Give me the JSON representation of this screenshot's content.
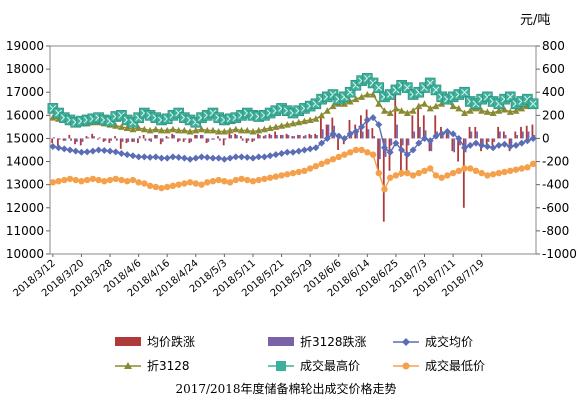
{
  "chart_data": {
    "type": "line",
    "title": "2017/2018年度储备棉轮出成交价格走势",
    "unit_right": "元/吨",
    "y_left": {
      "min": 10000,
      "max": 19000,
      "step": 1000,
      "ticks": [
        "10000",
        "11000",
        "12000",
        "13000",
        "14000",
        "15000",
        "16000",
        "17000",
        "18000",
        "19000"
      ]
    },
    "y_right": {
      "min": -1000,
      "max": 800,
      "step": 200,
      "ticks": [
        "-1000",
        "-800",
        "-600",
        "-400",
        "-200",
        "0",
        "200",
        "400",
        "600",
        "800"
      ]
    },
    "x": {
      "count": 85,
      "tick_labels": [
        "2018/3/12",
        "2018/3/20",
        "2018/3/28",
        "2018/4/6",
        "2018/4/16",
        "2018/4/24",
        "2018/5/3",
        "2018/5/11",
        "2018/5/21",
        "2018/5/29",
        "2018/6/6",
        "2018/6/14",
        "2018/6/25",
        "2018/7/3",
        "2018/7/11",
        "2018/7/19"
      ],
      "tick_every": 5
    },
    "legend": [
      {
        "key": "avg_change",
        "label": "均价跌涨",
        "marker": "bar"
      },
      {
        "key": "conv_change",
        "label": "折3128跌涨",
        "marker": "bar"
      },
      {
        "key": "avg",
        "label": "成交均价",
        "marker": "diamond-line"
      },
      {
        "key": "conv3128",
        "label": "折3128",
        "marker": "triangle-line"
      },
      {
        "key": "high",
        "label": "成交最高价",
        "marker": "square-line"
      },
      {
        "key": "low",
        "label": "成交最低价",
        "marker": "circle-line"
      }
    ],
    "colors": {
      "avg_change": "#b03a3a",
      "conv_change": "#7a62a8",
      "avg": "#5b6db5",
      "conv3128": "#8a8a32",
      "high": "#3cb09a",
      "low": "#f5a04a"
    },
    "series": [
      {
        "name": "成交均价",
        "axis": "left",
        "values": [
          14650,
          14600,
          14550,
          14500,
          14450,
          14400,
          14420,
          14450,
          14500,
          14480,
          14450,
          14420,
          14350,
          14300,
          14250,
          14200,
          14200,
          14180,
          14200,
          14150,
          14150,
          14200,
          14180,
          14150,
          14100,
          14150,
          14200,
          14180,
          14150,
          14150,
          14100,
          14150,
          14200,
          14200,
          14180,
          14150,
          14200,
          14200,
          14250,
          14300,
          14350,
          14400,
          14400,
          14450,
          14500,
          14550,
          14600,
          14800,
          15000,
          15200,
          15100,
          15000,
          15200,
          15300,
          15500,
          15800,
          15900,
          15600,
          14600,
          14400,
          14800,
          14500,
          14300,
          14500,
          14800,
          15000,
          14900,
          15100,
          15200,
          15300,
          15200,
          15000,
          14600,
          14700,
          14800,
          14700,
          14650,
          14600,
          14700,
          14750,
          14650,
          14700,
          14800,
          14900,
          15000
        ]
      },
      {
        "name": "折3128",
        "axis": "left",
        "values": [
          15900,
          15850,
          15800,
          15750,
          15700,
          15650,
          15650,
          15700,
          15700,
          15650,
          15600,
          15550,
          15500,
          15450,
          15400,
          15450,
          15400,
          15350,
          15400,
          15350,
          15350,
          15400,
          15350,
          15350,
          15300,
          15350,
          15400,
          15350,
          15350,
          15300,
          15300,
          15350,
          15400,
          15350,
          15350,
          15300,
          15350,
          15400,
          15450,
          15500,
          15550,
          15600,
          15650,
          15700,
          15750,
          15800,
          15850,
          16000,
          16200,
          16400,
          16500,
          16500,
          16600,
          16700,
          16800,
          16900,
          16900,
          16500,
          16200,
          16100,
          16300,
          16200,
          16100,
          16200,
          16400,
          16500,
          16300,
          16400,
          16500,
          16600,
          16400,
          16300,
          16100,
          16200,
          16300,
          16200,
          16150,
          16100,
          16200,
          16250,
          16150,
          16200,
          16300,
          16400,
          16450
        ]
      },
      {
        "name": "成交最高价",
        "axis": "left",
        "values": [
          16300,
          16100,
          15900,
          15800,
          15700,
          15750,
          15800,
          15850,
          15900,
          15800,
          15750,
          15950,
          16000,
          15800,
          15700,
          15900,
          16100,
          16000,
          15900,
          15800,
          15850,
          16000,
          16100,
          15900,
          15800,
          15700,
          15900,
          16000,
          16100,
          15900,
          15800,
          15850,
          15900,
          16000,
          16100,
          16000,
          15950,
          16000,
          16100,
          16200,
          16300,
          16200,
          16100,
          16200,
          16300,
          16400,
          16500,
          16700,
          16800,
          16900,
          16700,
          16800,
          17000,
          17300,
          17500,
          17600,
          17400,
          17200,
          16800,
          16900,
          17100,
          17300,
          17200,
          16900,
          17000,
          17200,
          17400,
          17100,
          16800,
          16700,
          16800,
          16900,
          17000,
          16600,
          16500,
          16700,
          16800,
          16600,
          16500,
          16700,
          16800,
          16500,
          16600,
          16700,
          16500
        ]
      },
      {
        "name": "成交最低价",
        "axis": "left",
        "values": [
          13100,
          13150,
          13200,
          13250,
          13200,
          13150,
          13200,
          13250,
          13200,
          13150,
          13200,
          13250,
          13200,
          13150,
          13200,
          13100,
          13050,
          12950,
          12900,
          12850,
          12900,
          12950,
          13000,
          13050,
          13100,
          13050,
          13000,
          13100,
          13150,
          13200,
          13150,
          13100,
          13200,
          13250,
          13200,
          13150,
          13200,
          13250,
          13300,
          13350,
          13400,
          13450,
          13500,
          13550,
          13600,
          13700,
          13800,
          13900,
          14000,
          14100,
          14200,
          14300,
          14400,
          14500,
          14500,
          14400,
          14300,
          13500,
          12800,
          13300,
          13400,
          13500,
          13500,
          13400,
          13500,
          13600,
          13700,
          13400,
          13300,
          13400,
          13500,
          13600,
          13700,
          13700,
          13600,
          13500,
          13400,
          13450,
          13500,
          13550,
          13600,
          13650,
          13700,
          13750,
          13900
        ]
      },
      {
        "name": "均价跌涨",
        "axis": "right",
        "values": [
          -40,
          -60,
          -20,
          30,
          -50,
          -60,
          20,
          40,
          -10,
          -30,
          -40,
          20,
          -90,
          -40,
          -30,
          -40,
          30,
          -20,
          30,
          -50,
          20,
          40,
          -30,
          -30,
          -40,
          30,
          30,
          -40,
          -10,
          20,
          -60,
          50,
          40,
          20,
          -40,
          -30,
          40,
          20,
          40,
          60,
          30,
          40,
          20,
          30,
          20,
          40,
          40,
          200,
          120,
          180,
          -100,
          -50,
          160,
          120,
          200,
          250,
          90,
          -300,
          -720,
          -280,
          420,
          -330,
          -280,
          200,
          290,
          200,
          -110,
          200,
          100,
          80,
          -110,
          -200,
          -600,
          100,
          100,
          -110,
          -60,
          -60,
          100,
          60,
          -110,
          60,
          100,
          110,
          120
        ]
      },
      {
        "name": "折3128跌涨",
        "axis": "right",
        "values": [
          10,
          -10,
          -20,
          -20,
          -30,
          -30,
          10,
          20,
          10,
          -20,
          -20,
          -20,
          -30,
          -30,
          -30,
          20,
          -20,
          -30,
          30,
          -30,
          10,
          30,
          -20,
          -10,
          -30,
          30,
          30,
          -30,
          -10,
          -20,
          -10,
          30,
          30,
          -20,
          -20,
          -20,
          30,
          30,
          30,
          30,
          30,
          30,
          20,
          30,
          30,
          30,
          30,
          80,
          120,
          110,
          40,
          -10,
          60,
          60,
          60,
          80,
          20,
          -180,
          -160,
          -60,
          120,
          -60,
          -60,
          60,
          100,
          70,
          -110,
          60,
          60,
          60,
          -120,
          -60,
          -120,
          60,
          60,
          -60,
          -30,
          -30,
          60,
          30,
          -60,
          30,
          60,
          60,
          30
        ]
      }
    ]
  }
}
